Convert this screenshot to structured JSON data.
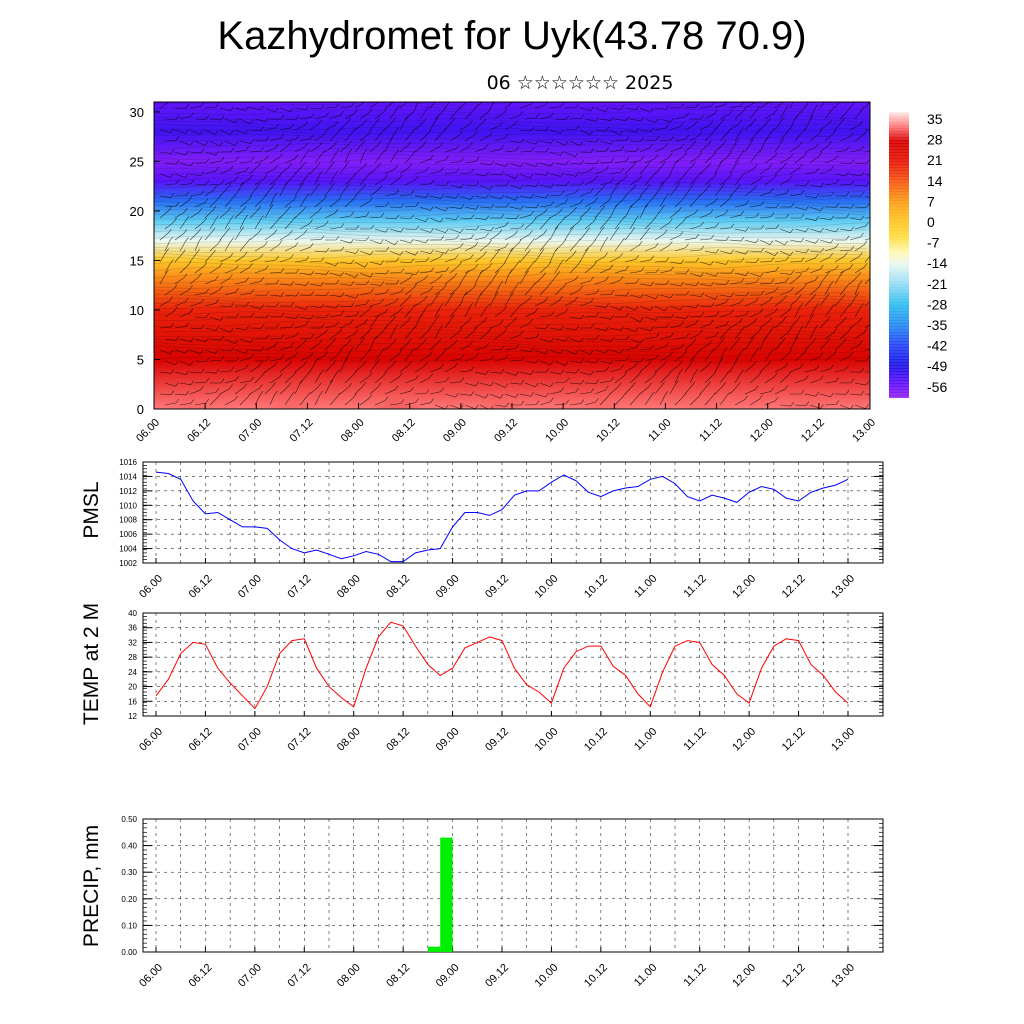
{
  "title": "Kazhydromet for Uyk(43.78 70.9)",
  "subtitle": "06 ☆☆☆☆☆☆ 2025",
  "chart_data": [
    {
      "type": "heatmap",
      "name": "vertical-cross-section",
      "ylim": [
        0,
        31
      ],
      "yticks": [
        "0",
        "5",
        "10",
        "15",
        "20",
        "25",
        "30"
      ],
      "xticks": [
        "06.00",
        "06.12",
        "07.00",
        "07.12",
        "08.00",
        "08.12",
        "09.00",
        "09.12",
        "10.00",
        "10.12",
        "11.00",
        "11.12",
        "12.00",
        "12.12",
        "13.00"
      ],
      "colorbar_labels": [
        "35",
        "28",
        "21",
        "14",
        "7",
        "0",
        "-7",
        "-14",
        "-21",
        "-28",
        "-35",
        "-42",
        "-49",
        "-56"
      ],
      "colorbar_range": [
        -60,
        38
      ],
      "overlay": "wind barbs",
      "profile_levels": [
        0,
        5,
        10,
        13,
        15,
        17,
        19,
        21,
        23,
        25,
        28,
        31
      ],
      "profile_temps": [
        33,
        27,
        20,
        10,
        0,
        -14,
        -25,
        -38,
        -54,
        -58,
        -52,
        -55
      ]
    },
    {
      "type": "line",
      "name": "pmsl",
      "ylabel": "PMSL",
      "ylim": [
        1002,
        1016
      ],
      "yticks": [
        "1016",
        "1014",
        "1012",
        "1010",
        "1008",
        "1006",
        "1004",
        "1002"
      ],
      "xticks": [
        "06.00",
        "06.12",
        "07.00",
        "07.12",
        "08.00",
        "08.12",
        "09.00",
        "09.12",
        "10.00",
        "10.12",
        "11.00",
        "11.12",
        "12.00",
        "12.12",
        "13.00"
      ],
      "color": "#0000ff",
      "values": [
        1014.6,
        1014.4,
        1013.6,
        1010.6,
        1008.8,
        1009.0,
        1008.0,
        1007.0,
        1007.0,
        1006.8,
        1005.2,
        1004.0,
        1003.4,
        1003.8,
        1003.2,
        1002.6,
        1003.0,
        1003.6,
        1003.2,
        1002.2,
        1002.2,
        1003.4,
        1003.8,
        1004.0,
        1007.0,
        1009.0,
        1009.0,
        1008.6,
        1009.4,
        1011.4,
        1012.0,
        1012.0,
        1013.2,
        1014.2,
        1013.4,
        1011.8,
        1011.2,
        1012.0,
        1012.4,
        1012.6,
        1013.6,
        1014.0,
        1013.0,
        1011.2,
        1010.6,
        1011.4,
        1011.0,
        1010.4,
        1011.8,
        1012.6,
        1012.2,
        1011.0,
        1010.6,
        1011.8,
        1012.4,
        1012.8,
        1013.6
      ]
    },
    {
      "type": "line",
      "name": "temp-2m",
      "ylabel": "TEMP at 2 M",
      "ylim": [
        12,
        40
      ],
      "yticks": [
        "40",
        "36",
        "32",
        "28",
        "24",
        "20",
        "16",
        "12"
      ],
      "xticks": [
        "06.00",
        "06.12",
        "07.00",
        "07.12",
        "08.00",
        "08.12",
        "09.00",
        "09.12",
        "10.00",
        "10.12",
        "11.00",
        "11.12",
        "12.00",
        "12.12",
        "13.00"
      ],
      "color": "#ff0000",
      "values": [
        17.5,
        22,
        29,
        32,
        31.5,
        25,
        21,
        17.5,
        14,
        20,
        29,
        32.5,
        33,
        25,
        20,
        17,
        14.5,
        25,
        33.5,
        37.5,
        36.5,
        31,
        26,
        23,
        25,
        30.5,
        32,
        33.5,
        32.5,
        25,
        20.5,
        18.5,
        15.5,
        25,
        29.5,
        31,
        31,
        25.5,
        23,
        18,
        14.5,
        24,
        31,
        32.5,
        32,
        26,
        23,
        18,
        15.5,
        25,
        31,
        33,
        32.5,
        26,
        23,
        18.5,
        15.5
      ]
    },
    {
      "type": "bar",
      "name": "precip",
      "ylabel": "PRECIP, mm",
      "ylim": [
        0,
        0.5
      ],
      "yticks": [
        "0.50",
        "0.40",
        "0.30",
        "0.20",
        "0.10",
        "0.00"
      ],
      "xticks": [
        "06.00",
        "06.12",
        "07.00",
        "07.12",
        "08.00",
        "08.12",
        "09.00",
        "09.12",
        "10.00",
        "10.12",
        "11.00",
        "11.12",
        "12.00",
        "12.12",
        "13.00"
      ],
      "color": "#00ee00",
      "bars": [
        {
          "x_hours": 69,
          "value": 0.02
        },
        {
          "x_hours": 72,
          "value": 0.43
        }
      ]
    }
  ]
}
